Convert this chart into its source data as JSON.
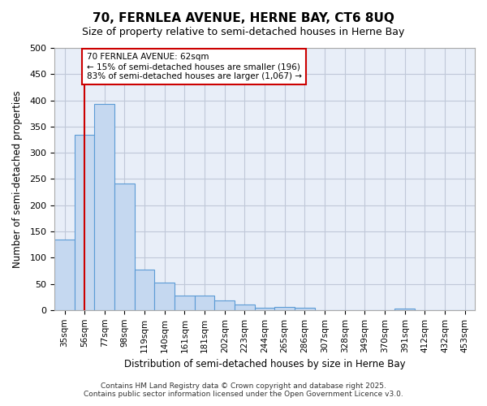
{
  "title1": "70, FERNLEA AVENUE, HERNE BAY, CT6 8UQ",
  "title2": "Size of property relative to semi-detached houses in Herne Bay",
  "xlabel": "Distribution of semi-detached houses by size in Herne Bay",
  "ylabel": "Number of semi-detached properties",
  "categories": [
    "35sqm",
    "56sqm",
    "77sqm",
    "98sqm",
    "119sqm",
    "140sqm",
    "161sqm",
    "181sqm",
    "202sqm",
    "223sqm",
    "244sqm",
    "265sqm",
    "286sqm",
    "307sqm",
    "328sqm",
    "349sqm",
    "370sqm",
    "391sqm",
    "412sqm",
    "432sqm",
    "453sqm"
  ],
  "values": [
    134,
    335,
    393,
    241,
    77,
    52,
    27,
    27,
    19,
    10,
    4,
    6,
    4,
    0,
    0,
    0,
    0,
    3,
    0,
    0,
    0
  ],
  "bar_color": "#c5d8f0",
  "bar_edge_color": "#5b9bd5",
  "red_line_x": 1.0,
  "annotation_text": "70 FERNLEA AVENUE: 62sqm\n← 15% of semi-detached houses are smaller (196)\n83% of semi-detached houses are larger (1,067) →",
  "annotation_box_color": "#ffffff",
  "annotation_box_edge": "#cc0000",
  "red_line_color": "#cc0000",
  "grid_color": "#c0c8d8",
  "background_color": "#e8eef8",
  "footer": "Contains HM Land Registry data © Crown copyright and database right 2025.\nContains public sector information licensed under the Open Government Licence v3.0.",
  "ylim": [
    0,
    500
  ],
  "yticks": [
    0,
    50,
    100,
    150,
    200,
    250,
    300,
    350,
    400,
    450,
    500
  ]
}
